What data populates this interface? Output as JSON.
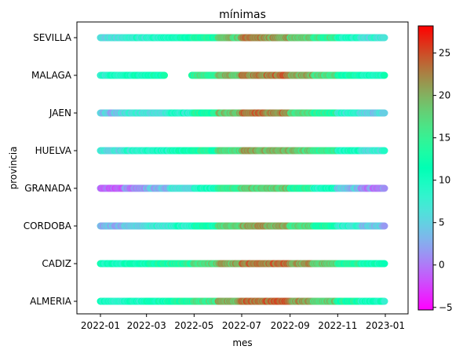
{
  "chart_data": {
    "type": "scatter",
    "title": "mínimas",
    "xlabel": "mes",
    "ylabel": "provincia",
    "colormap": "rainbow",
    "colorbar": {
      "range": [
        -5.3,
        28.2
      ],
      "ticks": [
        -5,
        0,
        5,
        10,
        15,
        20,
        25
      ]
    },
    "x_range": [
      "2022-01-01",
      "2022-12-31"
    ],
    "x_ticks": [
      "2022-01",
      "2022-03",
      "2022-05",
      "2022-07",
      "2022-09",
      "2022-11",
      "2023-01"
    ],
    "categories": [
      "ALMERIA",
      "CADIZ",
      "CORDOBA",
      "GRANADA",
      "HUELVA",
      "JAEN",
      "MALAGA",
      "SEVILLA"
    ],
    "series": [
      {
        "name": "SEVILLA",
        "monthly_min_temps": [
          6,
          8,
          9,
          11,
          13,
          18,
          22,
          21,
          18,
          15,
          10,
          7
        ],
        "missing_date_ranges": []
      },
      {
        "name": "MALAGA",
        "monthly_min_temps": [
          9,
          10,
          11,
          12,
          15,
          19,
          22,
          23,
          20,
          17,
          12,
          10
        ],
        "missing_date_ranges": [
          [
            "2022-03-25",
            "2022-04-27"
          ]
        ]
      },
      {
        "name": "JAEN",
        "monthly_min_temps": [
          4,
          6,
          7,
          9,
          13,
          19,
          23,
          22,
          17,
          14,
          8,
          5
        ],
        "missing_date_ranges": []
      },
      {
        "name": "HUELVA",
        "monthly_min_temps": [
          6,
          8,
          9,
          11,
          13,
          17,
          20,
          20,
          18,
          15,
          10,
          7
        ],
        "missing_date_ranges": []
      },
      {
        "name": "GRANADA",
        "monthly_min_temps": [
          -1,
          1,
          3,
          6,
          10,
          15,
          18,
          18,
          14,
          10,
          4,
          1
        ],
        "missing_date_ranges": []
      },
      {
        "name": "CORDOBA",
        "monthly_min_temps": [
          3,
          5,
          7,
          9,
          12,
          18,
          21,
          20,
          17,
          13,
          8,
          4
        ],
        "missing_date_ranges": []
      },
      {
        "name": "CADIZ",
        "monthly_min_temps": [
          10,
          11,
          12,
          14,
          17,
          20,
          23,
          23,
          21,
          18,
          14,
          11
        ],
        "missing_date_ranges": []
      },
      {
        "name": "ALMERIA",
        "monthly_min_temps": [
          9,
          10,
          11,
          13,
          16,
          20,
          23,
          24,
          21,
          18,
          13,
          10
        ],
        "missing_date_ranges": []
      }
    ]
  }
}
